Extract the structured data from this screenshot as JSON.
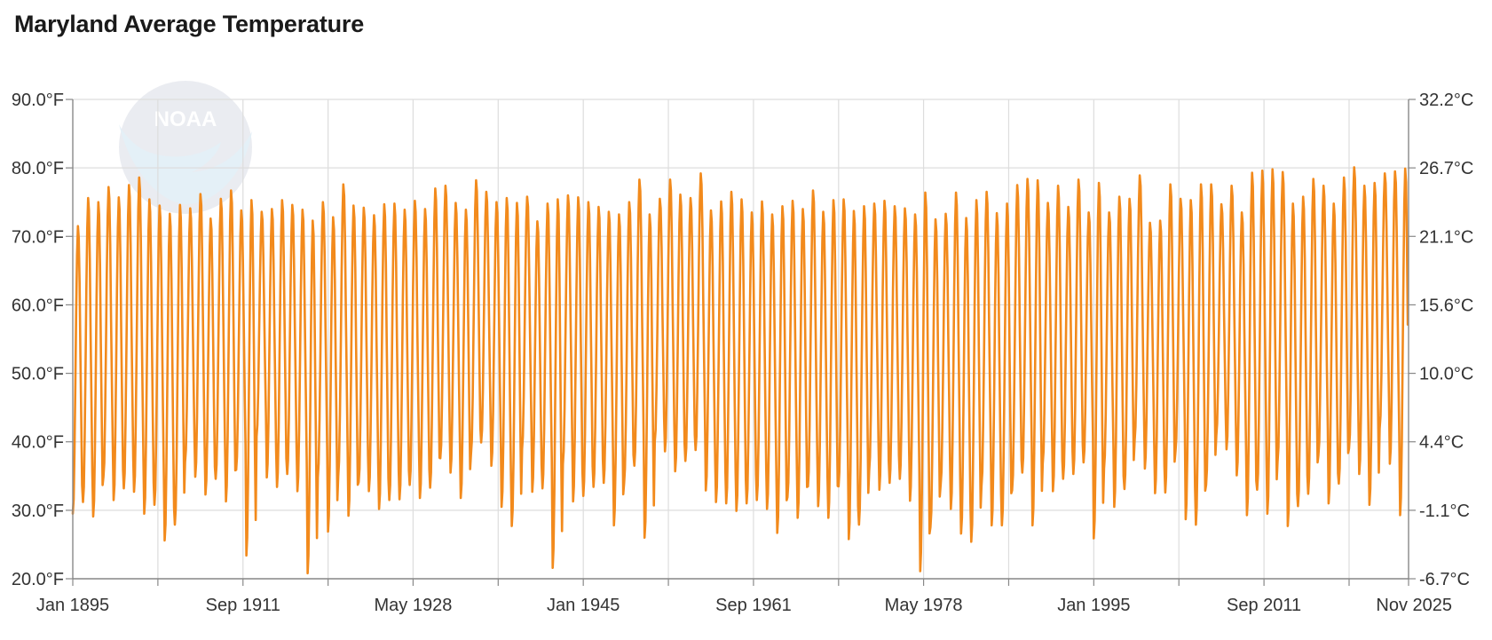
{
  "title": "Maryland Average Temperature",
  "colors": {
    "series": "#f28a1c",
    "grid": "#dddddd",
    "axis": "#888888",
    "text": "#333333",
    "logo_fill": "#d9dde6",
    "logo_wave": "#cfe4f2"
  },
  "logo": {
    "text": "NOAA"
  },
  "chart_data": {
    "type": "line",
    "title": "Maryland Average Temperature",
    "x_range": [
      "Jan 1895",
      "Nov 2025"
    ],
    "x_tick_labels": [
      "Jan 1895",
      "Sep 1911",
      "May 1928",
      "Jan 1945",
      "Sep 1961",
      "May 1978",
      "Jan 1995",
      "Sep 2011",
      "Nov 2025"
    ],
    "x_tick_years": [
      1895.0,
      1911.67,
      1928.33,
      1945.0,
      1961.67,
      1978.33,
      1995.0,
      2011.67,
      2025.83
    ],
    "y_left_ticks": [
      "20.0°F",
      "30.0°F",
      "40.0°F",
      "50.0°F",
      "60.0°F",
      "70.0°F",
      "80.0°F",
      "90.0°F"
    ],
    "y_right_ticks": [
      "-6.7°C",
      "-1.1°C",
      "4.4°C",
      "10.0°C",
      "15.6°C",
      "21.1°C",
      "26.7°C",
      "32.2°C"
    ],
    "ylim": [
      20,
      90
    ],
    "grid": true,
    "legend": "none",
    "series": [
      {
        "frequency": "monthly",
        "start": "Jan 1895",
        "annual_peaks": [
          71.5,
          75.6,
          75.0,
          77.2,
          75.7,
          77.5,
          78.6,
          75.4,
          74.5,
          73.3,
          74.6,
          74.1,
          76.2,
          72.6,
          75.5,
          76.7,
          73.8,
          75.3,
          73.6,
          74.0,
          75.3,
          74.6,
          73.9,
          72.3,
          75.0,
          72.8,
          77.6,
          74.5,
          74.2,
          73.1,
          74.7,
          74.8,
          73.9,
          75.2,
          74.0,
          77.0,
          77.4,
          74.9,
          73.9,
          78.2,
          76.5,
          75.0,
          75.6,
          74.9,
          75.8,
          72.2,
          74.8,
          75.4,
          76.0,
          75.7,
          75.0,
          74.3,
          73.6,
          73.2,
          75.0,
          78.3,
          73.2,
          75.5,
          78.3,
          76.1,
          75.6,
          79.2,
          73.8,
          75.1,
          76.5,
          75.4,
          73.5,
          75.1,
          73.2,
          74.4,
          75.2,
          74.0,
          76.7,
          73.6,
          75.3,
          75.4,
          73.7,
          74.4,
          74.8,
          75.2,
          74.4,
          74.1,
          73.2,
          76.4,
          72.5,
          73.3,
          76.4,
          72.7,
          75.3,
          76.5,
          73.4,
          74.8,
          77.5,
          78.4,
          78.2,
          74.9,
          77.4,
          74.3,
          78.3,
          73.5,
          77.8,
          73.5,
          75.8,
          75.5,
          78.9,
          72.0,
          72.3,
          77.6,
          75.5,
          75.3,
          77.6,
          77.6,
          74.7,
          77.4,
          73.5,
          79.3,
          79.6,
          79.8,
          79.4,
          74.8,
          75.8,
          78.4,
          77.4,
          74.8,
          78.6,
          80.1,
          77.4,
          77.8,
          79.2,
          79.5,
          79.9
        ],
        "annual_troughs": [
          29.5,
          31.2,
          29.1,
          34.8,
          31.5,
          33.2,
          32.7,
          29.5,
          30.8,
          25.6,
          27.9,
          37.0,
          34.9,
          32.3,
          34.6,
          31.3,
          35.9,
          23.4,
          40.8,
          34.8,
          33.4,
          35.3,
          32.8,
          20.8,
          34.8,
          26.9,
          35.0,
          29.2,
          34.1,
          32.8,
          30.2,
          31.5,
          31.6,
          33.7,
          31.8,
          33.3,
          37.6,
          35.5,
          31.8,
          38.1,
          39.9,
          36.5,
          30.5,
          27.7,
          38.9,
          32.7,
          33.2,
          21.6,
          36.7,
          31.3,
          32.1,
          33.4,
          34.0,
          27.8,
          34.0,
          36.5,
          26.0,
          40.0,
          38.6,
          35.7,
          37.2,
          38.8,
          32.9,
          31.2,
          31.0,
          29.9,
          31.0,
          31.5,
          30.2,
          26.7,
          31.9,
          28.9,
          33.5,
          30.6,
          28.9,
          33.5,
          25.8,
          27.9,
          35.8,
          33.0,
          34.0,
          34.6,
          31.4,
          21.1,
          27.5,
          33.7,
          30.2,
          26.6,
          25.4,
          33.5,
          27.8,
          27.8,
          32.9,
          35.5,
          27.8,
          36.8,
          32.8,
          34.6,
          35.3,
          37.0,
          25.9,
          36.1,
          30.5,
          33.1,
          40.2,
          36.1,
          32.5,
          32.6,
          38.6,
          28.7,
          27.9,
          33.7,
          40.9,
          38.9,
          35.1,
          29.3,
          33.0,
          29.5,
          37.1,
          27.7,
          30.6,
          32.4,
          38.0,
          31.0,
          33.9,
          39.0,
          35.3,
          30.8,
          41.9,
          36.8,
          29.3
        ]
      }
    ]
  }
}
